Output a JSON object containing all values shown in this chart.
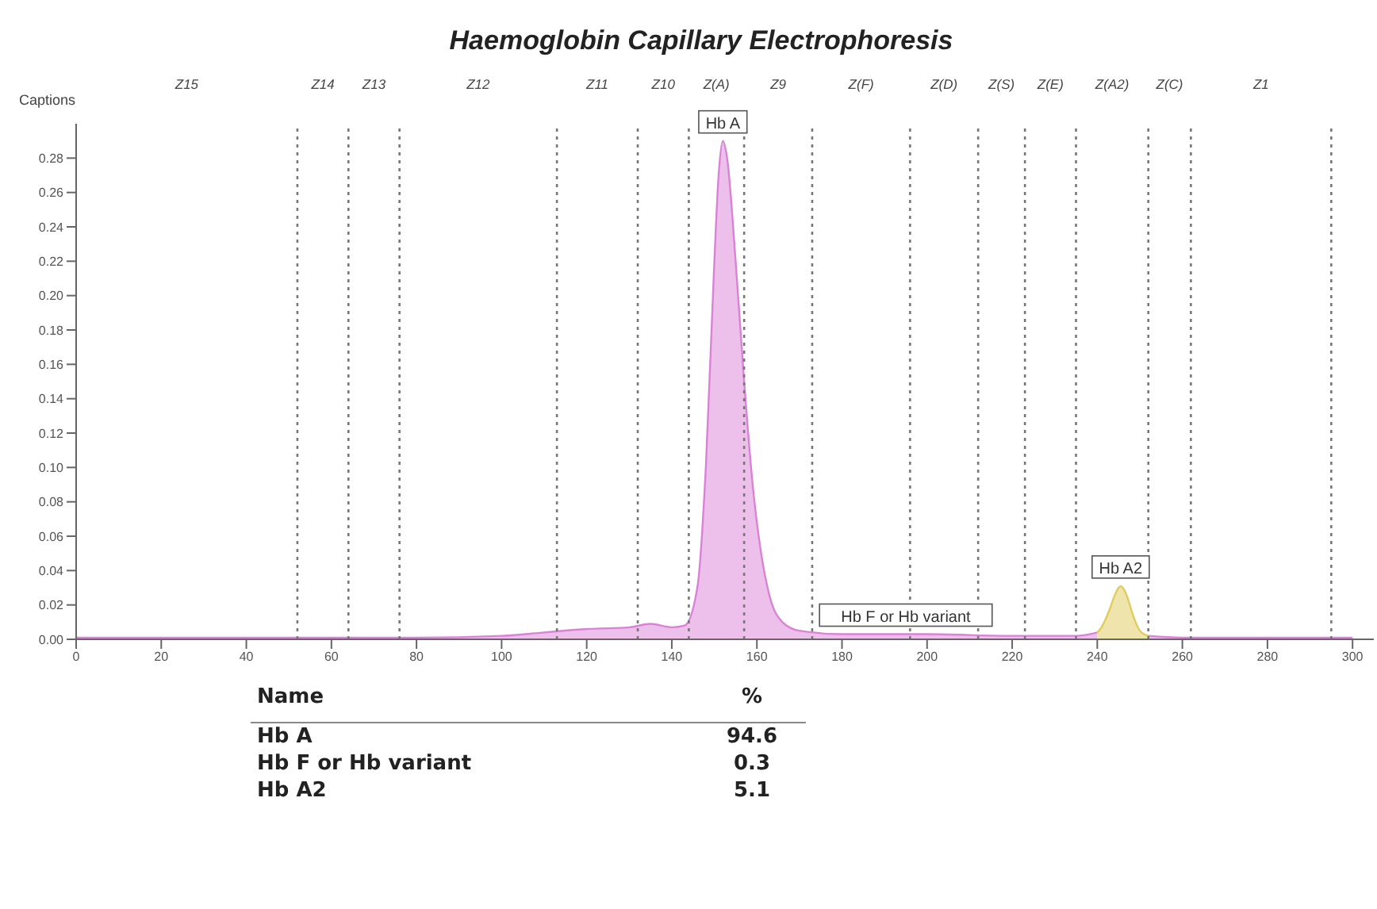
{
  "chart_data": [
    {
      "type": "area",
      "title": "Haemoglobin Capillary  Electrophoresis",
      "xlim": [
        0,
        305
      ],
      "xticks": [
        0,
        20,
        40,
        60,
        80,
        100,
        120,
        140,
        160,
        180,
        200,
        220,
        240,
        260,
        280,
        300
      ],
      "ylim": [
        0,
        0.3
      ],
      "yticks": [
        {
          "value": 0,
          "label": "0.00"
        },
        {
          "value": 0.02,
          "label": "0.02"
        },
        {
          "value": 0.04,
          "label": "0.04"
        },
        {
          "value": 0.06,
          "label": "0.06"
        },
        {
          "value": 0.08,
          "label": "0.08"
        },
        {
          "value": 0.1,
          "label": "0.10"
        },
        {
          "value": 0.12,
          "label": "0.12"
        },
        {
          "value": 0.14,
          "label": "0.14"
        },
        {
          "value": 0.16,
          "label": "0.16"
        },
        {
          "value": 0.18,
          "label": "0.18"
        },
        {
          "value": 0.2,
          "label": "0.20"
        },
        {
          "value": 0.22,
          "label": "0.22"
        },
        {
          "value": 0.24,
          "label": "0.24"
        },
        {
          "value": 0.26,
          "label": "0.26"
        },
        {
          "value": 0.28,
          "label": "0.28"
        }
      ],
      "series": [
        {
          "color": "#d982d6",
          "x": [
            0,
            20,
            40,
            60,
            80,
            100,
            110,
            120,
            130,
            135,
            140,
            143,
            146,
            148,
            150,
            151,
            152,
            153,
            155,
            157,
            159,
            161,
            163,
            166,
            170,
            180,
            200,
            220,
            235,
            240
          ],
          "values": [
            0.001,
            0.001,
            0.001,
            0.001,
            0.001,
            0.002,
            0.004,
            0.006,
            0.007,
            0.009,
            0.007,
            0.008,
            0.03,
            0.1,
            0.22,
            0.27,
            0.29,
            0.28,
            0.22,
            0.15,
            0.09,
            0.05,
            0.025,
            0.01,
            0.005,
            0.003,
            0.003,
            0.002,
            0.002,
            0.004
          ]
        },
        {
          "color": "#e0cc5a",
          "x": [
            240,
            241,
            242,
            243,
            244,
            245,
            245.5,
            246,
            247,
            248,
            249,
            250,
            251,
            252
          ],
          "values": [
            0.004,
            0.007,
            0.012,
            0.018,
            0.025,
            0.03,
            0.031,
            0.03,
            0.025,
            0.017,
            0.01,
            0.005,
            0.003,
            0.002
          ]
        },
        {
          "color": "#d982d6",
          "x": [
            252,
            260,
            280,
            300
          ],
          "values": [
            0.002,
            0.001,
            0.001,
            0.001
          ]
        }
      ],
      "ref_lines": [
        {
          "axis": "x",
          "value": 52,
          "line_style": "dotted"
        },
        {
          "axis": "x",
          "value": 64,
          "line_style": "dotted"
        },
        {
          "axis": "x",
          "value": 76,
          "line_style": "dotted"
        },
        {
          "axis": "x",
          "value": 113,
          "line_style": "dotted"
        },
        {
          "axis": "x",
          "value": 132,
          "line_style": "dotted"
        },
        {
          "axis": "x",
          "value": 144,
          "line_style": "dotted"
        },
        {
          "axis": "x",
          "value": 157,
          "line_style": "dotted"
        },
        {
          "axis": "x",
          "value": 173,
          "line_style": "dotted"
        },
        {
          "axis": "x",
          "value": 196,
          "line_style": "dotted"
        },
        {
          "axis": "x",
          "value": 212,
          "line_style": "dotted"
        },
        {
          "axis": "x",
          "value": 223,
          "line_style": "dotted"
        },
        {
          "axis": "x",
          "value": 235,
          "line_style": "dotted"
        },
        {
          "axis": "x",
          "value": 252,
          "line_style": "dotted"
        },
        {
          "axis": "x",
          "value": 262,
          "line_style": "dotted"
        },
        {
          "axis": "x",
          "value": 295,
          "line_style": "dotted"
        }
      ],
      "annotations": [
        "Captions",
        "Z15",
        "Z14",
        "Z13",
        "Z12",
        "Z11",
        "Z10",
        "Z(A)",
        "Z9",
        "Z(F)",
        "Z(D)",
        "Z(S)",
        "Z(E)",
        "Z(A2)",
        "Z(C)",
        "Z1",
        {
          "text": "Hb A",
          "x": 152,
          "y": 0.29
        },
        {
          "text": "Hb F or Hb variant",
          "x": 195,
          "y": 0.003
        },
        {
          "text": "Hb A2",
          "x": 245.5,
          "y": 0.031
        }
      ]
    },
    {
      "type": "other",
      "xlabel": "Name",
      "ylabel": "%",
      "categories": [
        "Hb A",
        "Hb F or Hb variant",
        "Hb A2"
      ],
      "values": [
        94.6,
        0.3,
        5.1
      ],
      "data_labels": true
    }
  ]
}
